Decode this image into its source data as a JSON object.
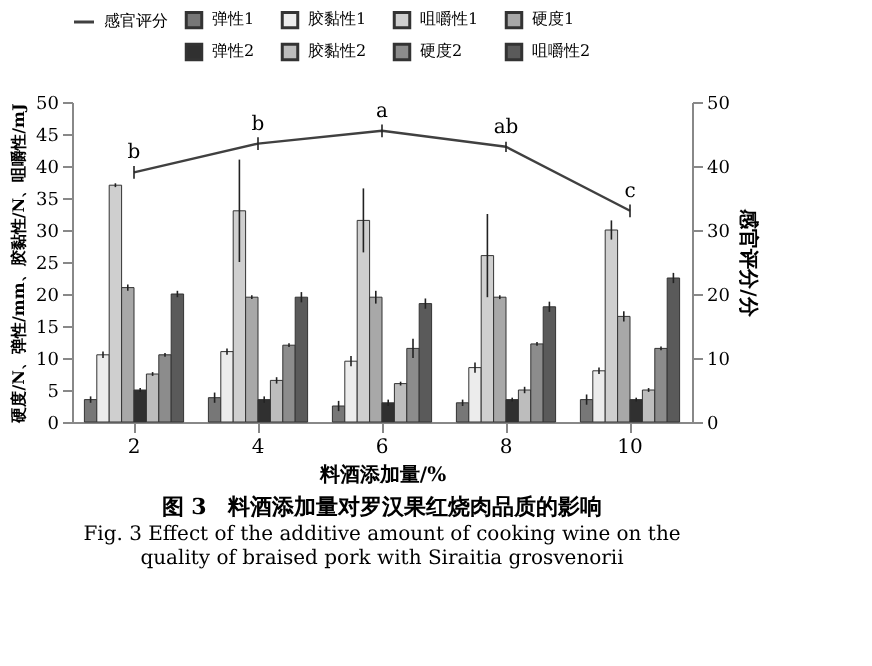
{
  "chart_data": {
    "type": "bar",
    "title": "图 3　料酒添加量对罗汉果红烧肉品质的影响",
    "subtitle": "Fig. 3 Effect of the additive amount of cooking wine on the quality of braised pork with Siraitia grosvenorii",
    "xlabel": "料酒添加量/%",
    "ylabel": "硬度/N、弹性/mm、胶黏性/N、咀嚼性/mJ",
    "y2label": "感官评分/分",
    "categories": [
      "2",
      "4",
      "6",
      "8",
      "10"
    ],
    "series": [
      {
        "name": "弹性1",
        "color": "#777777",
        "values": [
          3.5,
          3.8,
          2.5,
          3,
          3.5
        ],
        "errors": [
          0.5,
          0.8,
          0.8,
          0.5,
          0.8
        ]
      },
      {
        "name": "胶黏性1",
        "color": "#ececec",
        "values": [
          10.5,
          11,
          9.5,
          8.5,
          8
        ],
        "errors": [
          0.5,
          0.5,
          0.8,
          0.8,
          0.5
        ]
      },
      {
        "name": "咀嚼性1",
        "color": "#cfcfcf",
        "values": [
          37,
          33,
          31.5,
          26,
          30
        ],
        "errors": [
          0.3,
          8,
          5,
          6.5,
          1.5
        ]
      },
      {
        "name": "硬度1",
        "color": "#a8a8a8",
        "values": [
          21,
          19.5,
          19.5,
          19.5,
          16.5
        ],
        "errors": [
          0.5,
          0.3,
          1,
          0.3,
          0.8
        ]
      },
      {
        "name": "弹性2",
        "color": "#303030",
        "values": [
          5,
          3.5,
          3,
          3.5,
          3.5
        ],
        "errors": [
          0.3,
          0.5,
          0.5,
          0.3,
          0.3
        ]
      },
      {
        "name": "胶黏性2",
        "color": "#bdbdbd",
        "values": [
          7.5,
          6.5,
          6,
          5,
          5
        ],
        "errors": [
          0.3,
          0.5,
          0.3,
          0.5,
          0.3
        ]
      },
      {
        "name": "硬度2",
        "color": "#8c8c8c",
        "values": [
          10.5,
          12,
          11.5,
          12.2,
          11.5
        ],
        "errors": [
          0.3,
          0.3,
          1.5,
          0.3,
          0.3
        ]
      },
      {
        "name": "咀嚼性2",
        "color": "#5a5a5a",
        "values": [
          20,
          19.5,
          18.5,
          18,
          22.5
        ],
        "errors": [
          0.5,
          0.8,
          0.8,
          0.8,
          0.8
        ]
      },
      {
        "name": "感官评分",
        "type": "line",
        "axis": "y2",
        "color": "#404040",
        "values": [
          39,
          43.5,
          45.5,
          43,
          33
        ],
        "errors": [
          1,
          1,
          1,
          0.8,
          1
        ]
      }
    ],
    "ylim": [
      0,
      50
    ],
    "yticks": [
      0,
      5,
      10,
      15,
      20,
      25,
      30,
      35,
      40,
      45,
      50
    ],
    "y2lim": [
      0,
      50
    ],
    "y2ticks": [
      0,
      10,
      20,
      30,
      40,
      50
    ],
    "annotations": [
      {
        "text": "b",
        "x": "2",
        "y": 39
      },
      {
        "text": "b",
        "x": "4",
        "y": 43.5
      },
      {
        "text": "a",
        "x": "6",
        "y": 45.5
      },
      {
        "text": "ab",
        "x": "8",
        "y": 43
      },
      {
        "text": "c",
        "x": "10",
        "y": 33
      }
    ],
    "legend": "top"
  }
}
